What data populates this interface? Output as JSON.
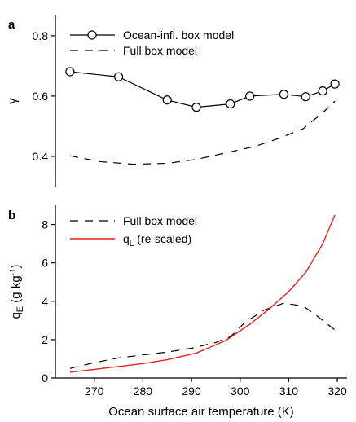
{
  "chart_data": [
    {
      "panel_label": "a",
      "type": "line",
      "ylabel": "γ",
      "xlim": [
        262,
        322
      ],
      "ylim": [
        0.3,
        0.87
      ],
      "yticks": [
        0.4,
        0.6,
        0.8
      ],
      "ytick_labels": [
        "0.4",
        "0.6",
        "0.8"
      ],
      "legend_position": "top-left",
      "series": [
        {
          "name": "Ocean-infl. box model",
          "style": "solid-circle",
          "color": "#000000",
          "x": [
            265,
            275,
            285,
            291,
            298,
            302,
            309,
            313.5,
            317,
            319.5
          ],
          "y": [
            0.681,
            0.664,
            0.587,
            0.563,
            0.574,
            0.6,
            0.606,
            0.598,
            0.617,
            0.64
          ]
        },
        {
          "name": "Full box model",
          "style": "dashed",
          "color": "#000000",
          "x": [
            265,
            271,
            278,
            285,
            291,
            298,
            303,
            308,
            313,
            317,
            319.5
          ],
          "y": [
            0.402,
            0.383,
            0.374,
            0.377,
            0.39,
            0.415,
            0.433,
            0.46,
            0.492,
            0.545,
            0.583
          ]
        }
      ]
    },
    {
      "panel_label": "b",
      "type": "line",
      "xlabel": "Ocean surface air temperature (K)",
      "ylabel_main": "q",
      "ylabel_sub": "E",
      "ylabel_units": " (g kg",
      "ylabel_sup": "-1",
      "ylabel_close": ")",
      "xlim": [
        262,
        322
      ],
      "ylim": [
        0,
        9
      ],
      "xticks": [
        270,
        280,
        290,
        300,
        310,
        320
      ],
      "xtick_labels": [
        "270",
        "280",
        "290",
        "300",
        "310",
        "320"
      ],
      "yticks": [
        0,
        2,
        4,
        6,
        8
      ],
      "ytick_labels": [
        "0",
        "2",
        "4",
        "6",
        "8"
      ],
      "legend_position": "top-left",
      "series": [
        {
          "name": "Full box model",
          "style": "dashed",
          "color": "#000000",
          "x": [
            265,
            270,
            275,
            280,
            285,
            290,
            295,
            298,
            301,
            305,
            309,
            313,
            316,
            319.5
          ],
          "y": [
            0.5,
            0.8,
            1.05,
            1.2,
            1.35,
            1.55,
            1.85,
            2.15,
            2.9,
            3.55,
            3.9,
            3.75,
            3.2,
            2.5
          ]
        },
        {
          "name_main": "q",
          "name_sub": "L",
          "name_rest": " (re-scaled)",
          "style": "solid",
          "color": "#e8201c",
          "x": [
            265,
            270,
            275,
            280,
            285,
            291,
            297,
            302,
            306,
            310,
            313.5,
            317,
            319.5
          ],
          "y": [
            0.3,
            0.45,
            0.6,
            0.75,
            0.95,
            1.3,
            1.95,
            2.8,
            3.6,
            4.5,
            5.5,
            7.0,
            8.5
          ]
        }
      ]
    }
  ]
}
